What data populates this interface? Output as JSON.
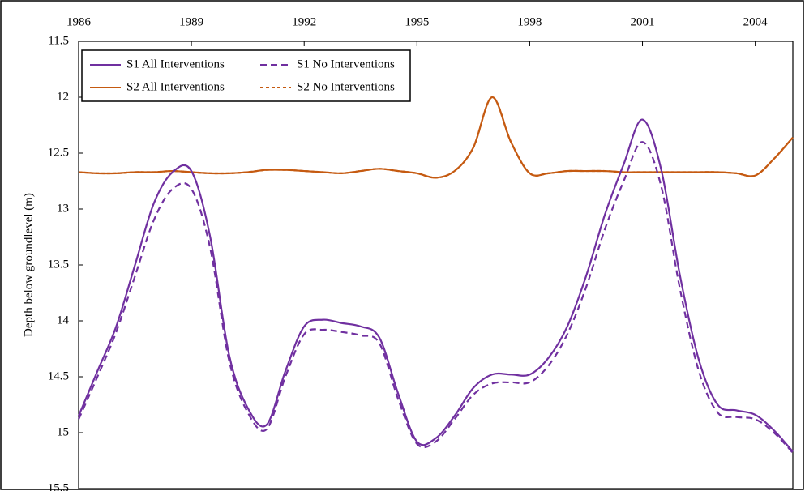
{
  "chart_data": {
    "type": "line",
    "y_label": "Depth below groundlevel (m)",
    "x": [
      1986,
      1986.5,
      1987,
      1987.5,
      1988,
      1988.5,
      1989,
      1989.5,
      1990,
      1990.5,
      1991,
      1991.5,
      1992,
      1992.5,
      1993,
      1993.5,
      1994,
      1994.5,
      1995,
      1995.5,
      1996,
      1996.5,
      1997,
      1997.5,
      1998,
      1998.5,
      1999,
      1999.5,
      2000,
      2000.5,
      2001,
      2001.5,
      2002,
      2002.5,
      2003,
      2003.5,
      2004,
      2004.5,
      2005
    ],
    "series": [
      {
        "name": "S1 All Interventions",
        "color": "#7030a0",
        "style": "solid",
        "values": [
          14.85,
          14.45,
          14.05,
          13.5,
          12.95,
          12.67,
          12.66,
          13.25,
          14.3,
          14.78,
          14.93,
          14.45,
          14.05,
          13.99,
          14.02,
          14.05,
          14.15,
          14.65,
          15.08,
          15.05,
          14.85,
          14.6,
          14.48,
          14.48,
          14.48,
          14.33,
          14.05,
          13.6,
          13.05,
          12.6,
          12.2,
          12.65,
          13.6,
          14.35,
          14.75,
          14.8,
          14.84,
          14.98,
          15.17
        ]
      },
      {
        "name": "S1 No Interventions",
        "color": "#7030a0",
        "style": "dashed",
        "values": [
          14.88,
          14.5,
          14.1,
          13.6,
          13.1,
          12.82,
          12.82,
          13.35,
          14.35,
          14.82,
          14.97,
          14.5,
          14.12,
          14.08,
          14.1,
          14.13,
          14.2,
          14.7,
          15.1,
          15.08,
          14.88,
          14.66,
          14.56,
          14.55,
          14.55,
          14.4,
          14.12,
          13.7,
          13.18,
          12.75,
          12.4,
          12.8,
          13.72,
          14.45,
          14.82,
          14.86,
          14.88,
          15.0,
          15.18
        ]
      },
      {
        "name": "S2 All Interventions",
        "color": "#c55a11",
        "style": "solid",
        "values": [
          12.67,
          12.68,
          12.68,
          12.67,
          12.67,
          12.66,
          12.67,
          12.68,
          12.68,
          12.67,
          12.65,
          12.65,
          12.66,
          12.67,
          12.68,
          12.66,
          12.64,
          12.66,
          12.68,
          12.72,
          12.66,
          12.45,
          12.0,
          12.4,
          12.68,
          12.68,
          12.66,
          12.66,
          12.66,
          12.67,
          12.67,
          12.67,
          12.67,
          12.67,
          12.67,
          12.68,
          12.7,
          12.55,
          12.36
        ]
      },
      {
        "name": "S2 No Interventions",
        "color": "#c55a11",
        "style": "dashed",
        "values": [
          12.67,
          12.68,
          12.68,
          12.67,
          12.67,
          12.66,
          12.67,
          12.68,
          12.68,
          12.67,
          12.65,
          12.65,
          12.66,
          12.67,
          12.68,
          12.66,
          12.64,
          12.66,
          12.68,
          12.72,
          12.66,
          12.45,
          12.0,
          12.4,
          12.68,
          12.68,
          12.66,
          12.66,
          12.66,
          12.67,
          12.67,
          12.67,
          12.67,
          12.67,
          12.67,
          12.68,
          12.7,
          12.55,
          12.36
        ]
      }
    ],
    "xlim": [
      1986,
      2005
    ],
    "xticks": [
      1986,
      1989,
      1992,
      1995,
      1998,
      2001,
      2004
    ],
    "ylim": [
      11.5,
      15.5
    ],
    "yticks": [
      11.5,
      12,
      12.5,
      13,
      13.5,
      14,
      14.5,
      15,
      15.5
    ],
    "y_inverted": true,
    "x_axis_position": "top",
    "grid": false,
    "legend_position": "upper-left"
  }
}
